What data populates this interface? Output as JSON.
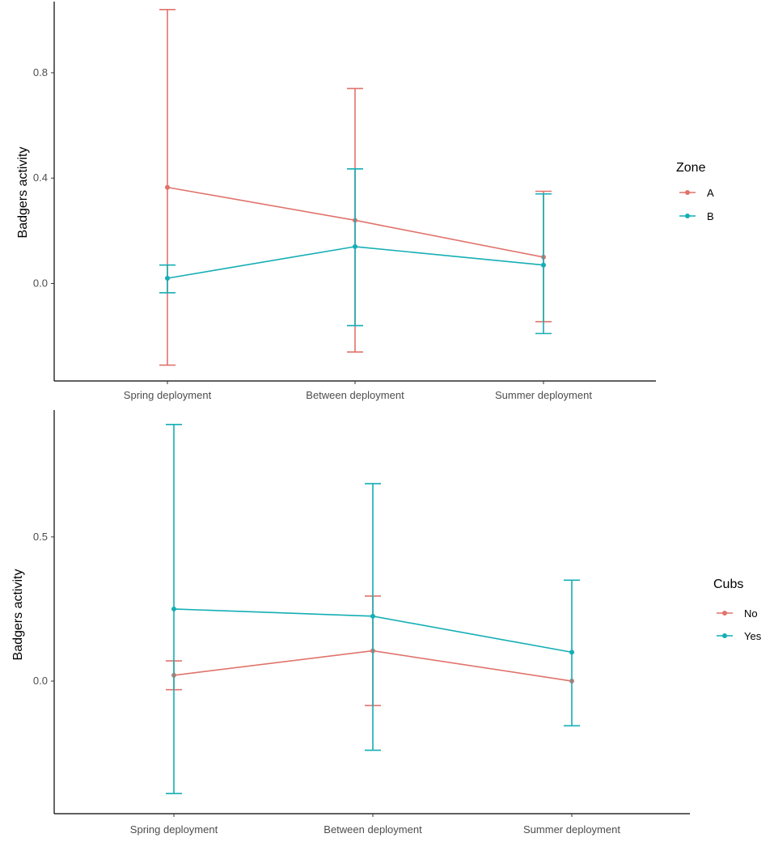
{
  "chart_data": [
    {
      "type": "line",
      "ylabel": "Badgers activity",
      "xlabel": "",
      "categories": [
        "Spring deployment",
        "Between deployment",
        "Summer deployment"
      ],
      "yticks": [
        0.0,
        0.4,
        0.8
      ],
      "ytick_labels": [
        "0.0",
        "0.4",
        "0.8"
      ],
      "ylim": [
        -0.37,
        1.07
      ],
      "legend": {
        "title": "Zone",
        "position": "right"
      },
      "series": [
        {
          "name": "A",
          "color": "#E0736B",
          "values": [
            0.365,
            0.24,
            0.1
          ],
          "lower": [
            -0.31,
            -0.26,
            -0.145
          ],
          "upper": [
            1.04,
            0.74,
            0.35
          ]
        },
        {
          "name": "B",
          "color": "#14AEB4",
          "values": [
            0.02,
            0.14,
            0.07
          ],
          "lower": [
            -0.035,
            -0.16,
            -0.19
          ],
          "upper": [
            0.07,
            0.435,
            0.34
          ]
        }
      ]
    },
    {
      "type": "line",
      "ylabel": "Badgers activity",
      "xlabel": "",
      "categories": [
        "Spring deployment",
        "Between deployment",
        "Summer deployment"
      ],
      "yticks": [
        0.0,
        0.5
      ],
      "ytick_labels": [
        "0.0",
        "0.5"
      ],
      "ylim": [
        -0.46,
        0.94
      ],
      "legend": {
        "title": "Cubs",
        "position": "right"
      },
      "series": [
        {
          "name": "No",
          "color": "#E0736B",
          "values": [
            0.02,
            0.105,
            0.0
          ],
          "lower": [
            -0.03,
            -0.085,
            0.0
          ],
          "upper": [
            0.07,
            0.295,
            0.0
          ]
        },
        {
          "name": "Yes",
          "color": "#14AEB4",
          "values": [
            0.25,
            0.225,
            0.1
          ],
          "lower": [
            -0.39,
            -0.24,
            -0.155
          ],
          "upper": [
            0.89,
            0.685,
            0.35
          ]
        }
      ]
    }
  ]
}
